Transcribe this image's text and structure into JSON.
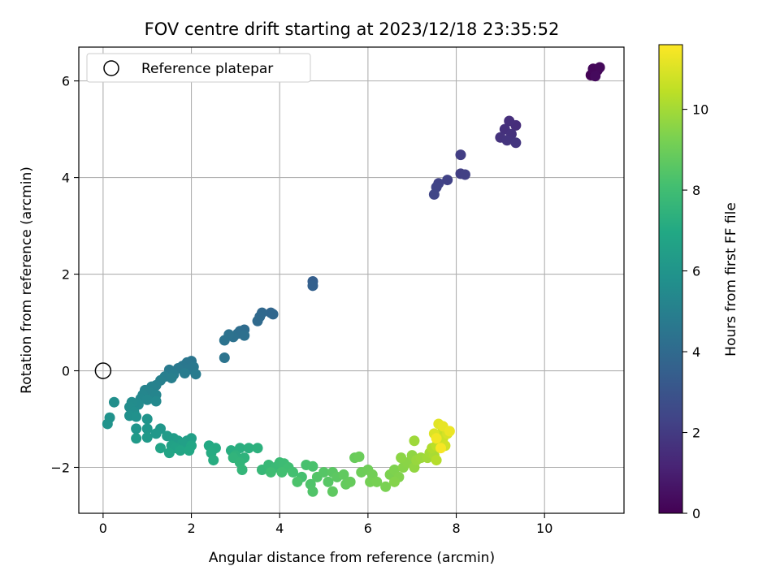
{
  "chart_data": {
    "type": "scatter",
    "title": "FOV centre drift starting at 2023/12/18 23:35:52",
    "xlabel": "Angular distance from reference (arcmin)",
    "ylabel": "Rotation from reference (arcmin)",
    "xlim": [
      -0.55,
      11.8
    ],
    "ylim": [
      -2.95,
      6.7
    ],
    "x_ticks": [
      0,
      2,
      4,
      6,
      8,
      10
    ],
    "y_ticks": [
      -2,
      0,
      2,
      4,
      6
    ],
    "x_tick_labels": [
      "0",
      "2",
      "4",
      "6",
      "8",
      "10"
    ],
    "y_tick_labels": [
      "−2",
      "0",
      "2",
      "4",
      "6"
    ],
    "grid": true,
    "legend": {
      "position": "top-left",
      "entries": [
        {
          "label": "Reference platepar",
          "marker": "open-circle"
        }
      ]
    },
    "reference_point": {
      "x": 0,
      "y": 0
    },
    "colorbar": {
      "label": "Hours from first FF file",
      "colormap": "viridis",
      "range": [
        0,
        11.6
      ],
      "ticks": [
        0,
        2,
        4,
        6,
        8,
        10
      ],
      "tick_labels": [
        "0",
        "2",
        "4",
        "6",
        "8",
        "10"
      ]
    },
    "points": [
      {
        "x": 11.05,
        "y": 6.12,
        "c": 0.05
      },
      {
        "x": 11.12,
        "y": 6.18,
        "c": 0.1
      },
      {
        "x": 11.2,
        "y": 6.22,
        "c": 0.15
      },
      {
        "x": 11.1,
        "y": 6.25,
        "c": 0.2
      },
      {
        "x": 11.25,
        "y": 6.28,
        "c": 0.25
      },
      {
        "x": 11.15,
        "y": 6.1,
        "c": 0.3
      },
      {
        "x": 9.35,
        "y": 5.08,
        "c": 1.5
      },
      {
        "x": 9.2,
        "y": 5.17,
        "c": 1.55
      },
      {
        "x": 9.1,
        "y": 5.0,
        "c": 1.6
      },
      {
        "x": 9.25,
        "y": 4.9,
        "c": 1.65
      },
      {
        "x": 9.0,
        "y": 4.83,
        "c": 1.7
      },
      {
        "x": 9.15,
        "y": 4.77,
        "c": 1.75
      },
      {
        "x": 9.35,
        "y": 4.72,
        "c": 1.8
      },
      {
        "x": 8.1,
        "y": 4.47,
        "c": 2.1
      },
      {
        "x": 8.1,
        "y": 4.08,
        "c": 2.15
      },
      {
        "x": 8.2,
        "y": 4.06,
        "c": 2.2
      },
      {
        "x": 7.8,
        "y": 3.95,
        "c": 2.25
      },
      {
        "x": 7.6,
        "y": 3.88,
        "c": 2.3
      },
      {
        "x": 7.55,
        "y": 3.8,
        "c": 2.35
      },
      {
        "x": 7.5,
        "y": 3.65,
        "c": 2.4
      },
      {
        "x": 4.75,
        "y": 1.85,
        "c": 3.5
      },
      {
        "x": 4.75,
        "y": 1.76,
        "c": 3.55
      },
      {
        "x": 3.8,
        "y": 1.2,
        "c": 3.8
      },
      {
        "x": 3.85,
        "y": 1.17,
        "c": 3.85
      },
      {
        "x": 3.6,
        "y": 1.2,
        "c": 3.9
      },
      {
        "x": 3.55,
        "y": 1.12,
        "c": 3.95
      },
      {
        "x": 3.5,
        "y": 1.03,
        "c": 4.0
      },
      {
        "x": 3.2,
        "y": 0.85,
        "c": 4.1
      },
      {
        "x": 3.1,
        "y": 0.82,
        "c": 4.15
      },
      {
        "x": 3.05,
        "y": 0.77,
        "c": 4.2
      },
      {
        "x": 3.2,
        "y": 0.73,
        "c": 4.25
      },
      {
        "x": 2.95,
        "y": 0.7,
        "c": 4.3
      },
      {
        "x": 2.85,
        "y": 0.75,
        "c": 4.35
      },
      {
        "x": 2.75,
        "y": 0.63,
        "c": 4.4
      },
      {
        "x": 2.75,
        "y": 0.27,
        "c": 4.45
      },
      {
        "x": 2.0,
        "y": 0.2,
        "c": 4.5
      },
      {
        "x": 1.9,
        "y": 0.17,
        "c": 4.55
      },
      {
        "x": 1.8,
        "y": 0.1,
        "c": 4.6
      },
      {
        "x": 2.05,
        "y": 0.08,
        "c": 4.62
      },
      {
        "x": 1.95,
        "y": 0.03,
        "c": 4.65
      },
      {
        "x": 1.7,
        "y": 0.05,
        "c": 4.7
      },
      {
        "x": 1.5,
        "y": 0.02,
        "c": 4.75
      },
      {
        "x": 2.1,
        "y": -0.07,
        "c": 4.8
      },
      {
        "x": 1.85,
        "y": -0.05,
        "c": 4.82
      },
      {
        "x": 1.6,
        "y": -0.08,
        "c": 4.85
      },
      {
        "x": 1.4,
        "y": -0.12,
        "c": 4.9
      },
      {
        "x": 1.55,
        "y": -0.15,
        "c": 4.95
      },
      {
        "x": 1.3,
        "y": -0.2,
        "c": 5.0
      },
      {
        "x": 1.2,
        "y": -0.3,
        "c": 5.05
      },
      {
        "x": 1.1,
        "y": -0.33,
        "c": 5.1
      },
      {
        "x": 0.95,
        "y": -0.4,
        "c": 5.15
      },
      {
        "x": 1.05,
        "y": -0.45,
        "c": 5.2
      },
      {
        "x": 1.2,
        "y": -0.5,
        "c": 5.25
      },
      {
        "x": 0.9,
        "y": -0.5,
        "c": 5.3
      },
      {
        "x": 0.85,
        "y": -0.58,
        "c": 5.35
      },
      {
        "x": 1.0,
        "y": -0.6,
        "c": 5.4
      },
      {
        "x": 1.2,
        "y": -0.63,
        "c": 5.45
      },
      {
        "x": 0.8,
        "y": -0.7,
        "c": 5.5
      },
      {
        "x": 0.65,
        "y": -0.65,
        "c": 5.55
      },
      {
        "x": 0.6,
        "y": -0.75,
        "c": 5.6
      },
      {
        "x": 0.7,
        "y": -0.85,
        "c": 5.65
      },
      {
        "x": 0.25,
        "y": -0.65,
        "c": 5.7
      },
      {
        "x": 0.6,
        "y": -0.93,
        "c": 5.75
      },
      {
        "x": 0.75,
        "y": -0.95,
        "c": 5.8
      },
      {
        "x": 0.15,
        "y": -0.97,
        "c": 5.85
      },
      {
        "x": 0.1,
        "y": -1.1,
        "c": 5.9
      },
      {
        "x": 1.0,
        "y": -1.0,
        "c": 5.95
      },
      {
        "x": 0.75,
        "y": -1.2,
        "c": 6.0
      },
      {
        "x": 1.0,
        "y": -1.2,
        "c": 6.05
      },
      {
        "x": 1.3,
        "y": -1.2,
        "c": 6.1
      },
      {
        "x": 1.2,
        "y": -1.3,
        "c": 6.15
      },
      {
        "x": 1.0,
        "y": -1.38,
        "c": 6.2
      },
      {
        "x": 0.75,
        "y": -1.4,
        "c": 6.25
      },
      {
        "x": 1.45,
        "y": -1.35,
        "c": 6.3
      },
      {
        "x": 1.6,
        "y": -1.4,
        "c": 6.35
      },
      {
        "x": 1.7,
        "y": -1.45,
        "c": 6.4
      },
      {
        "x": 1.9,
        "y": -1.45,
        "c": 6.45
      },
      {
        "x": 2.0,
        "y": -1.4,
        "c": 6.5
      },
      {
        "x": 1.8,
        "y": -1.5,
        "c": 6.55
      },
      {
        "x": 1.55,
        "y": -1.55,
        "c": 6.6
      },
      {
        "x": 1.65,
        "y": -1.6,
        "c": 6.65
      },
      {
        "x": 1.3,
        "y": -1.6,
        "c": 6.7
      },
      {
        "x": 1.5,
        "y": -1.7,
        "c": 6.75
      },
      {
        "x": 1.75,
        "y": -1.65,
        "c": 6.8
      },
      {
        "x": 2.0,
        "y": -1.55,
        "c": 6.85
      },
      {
        "x": 1.95,
        "y": -1.65,
        "c": 6.9
      },
      {
        "x": 2.4,
        "y": -1.55,
        "c": 7.0
      },
      {
        "x": 2.55,
        "y": -1.6,
        "c": 7.05
      },
      {
        "x": 2.45,
        "y": -1.7,
        "c": 7.1
      },
      {
        "x": 2.5,
        "y": -1.85,
        "c": 7.15
      },
      {
        "x": 2.9,
        "y": -1.65,
        "c": 7.2
      },
      {
        "x": 3.1,
        "y": -1.6,
        "c": 7.25
      },
      {
        "x": 3.3,
        "y": -1.6,
        "c": 7.3
      },
      {
        "x": 3.5,
        "y": -1.6,
        "c": 7.35
      },
      {
        "x": 3.0,
        "y": -1.75,
        "c": 7.4
      },
      {
        "x": 3.2,
        "y": -1.8,
        "c": 7.45
      },
      {
        "x": 2.95,
        "y": -1.8,
        "c": 7.5
      },
      {
        "x": 3.1,
        "y": -1.9,
        "c": 7.55
      },
      {
        "x": 3.15,
        "y": -2.05,
        "c": 7.6
      },
      {
        "x": 3.6,
        "y": -2.05,
        "c": 7.7
      },
      {
        "x": 3.75,
        "y": -1.95,
        "c": 7.75
      },
      {
        "x": 3.9,
        "y": -2.0,
        "c": 7.8
      },
      {
        "x": 4.0,
        "y": -1.9,
        "c": 7.85
      },
      {
        "x": 4.1,
        "y": -1.92,
        "c": 7.9
      },
      {
        "x": 3.8,
        "y": -2.1,
        "c": 7.95
      },
      {
        "x": 4.2,
        "y": -2.0,
        "c": 8.0
      },
      {
        "x": 4.05,
        "y": -2.1,
        "c": 8.05
      },
      {
        "x": 4.3,
        "y": -2.1,
        "c": 8.1
      },
      {
        "x": 4.5,
        "y": -2.2,
        "c": 8.15
      },
      {
        "x": 4.6,
        "y": -1.95,
        "c": 8.2
      },
      {
        "x": 4.75,
        "y": -1.98,
        "c": 8.25
      },
      {
        "x": 4.4,
        "y": -2.3,
        "c": 8.3
      },
      {
        "x": 4.7,
        "y": -2.35,
        "c": 8.35
      },
      {
        "x": 4.75,
        "y": -2.5,
        "c": 8.4
      },
      {
        "x": 4.85,
        "y": -2.2,
        "c": 8.45
      },
      {
        "x": 5.0,
        "y": -2.1,
        "c": 8.5
      },
      {
        "x": 5.1,
        "y": -2.3,
        "c": 8.55
      },
      {
        "x": 5.2,
        "y": -2.1,
        "c": 8.6
      },
      {
        "x": 5.3,
        "y": -2.2,
        "c": 8.65
      },
      {
        "x": 5.2,
        "y": -2.5,
        "c": 8.7
      },
      {
        "x": 5.45,
        "y": -2.15,
        "c": 8.75
      },
      {
        "x": 5.5,
        "y": -2.35,
        "c": 8.8
      },
      {
        "x": 5.6,
        "y": -2.3,
        "c": 8.85
      },
      {
        "x": 5.7,
        "y": -1.8,
        "c": 8.9
      },
      {
        "x": 5.8,
        "y": -1.78,
        "c": 8.95
      },
      {
        "x": 5.85,
        "y": -2.1,
        "c": 9.0
      },
      {
        "x": 6.0,
        "y": -2.05,
        "c": 9.05
      },
      {
        "x": 6.1,
        "y": -2.15,
        "c": 9.1
      },
      {
        "x": 6.05,
        "y": -2.3,
        "c": 9.15
      },
      {
        "x": 6.2,
        "y": -2.3,
        "c": 9.2
      },
      {
        "x": 6.4,
        "y": -2.4,
        "c": 9.25
      },
      {
        "x": 6.5,
        "y": -2.15,
        "c": 9.3
      },
      {
        "x": 6.6,
        "y": -2.05,
        "c": 9.35
      },
      {
        "x": 6.7,
        "y": -2.2,
        "c": 9.4
      },
      {
        "x": 6.6,
        "y": -2.3,
        "c": 9.45
      },
      {
        "x": 6.8,
        "y": -2.0,
        "c": 9.5
      },
      {
        "x": 6.9,
        "y": -1.9,
        "c": 9.55
      },
      {
        "x": 6.75,
        "y": -1.8,
        "c": 9.6
      },
      {
        "x": 7.0,
        "y": -1.75,
        "c": 9.65
      },
      {
        "x": 7.05,
        "y": -2.0,
        "c": 9.7
      },
      {
        "x": 7.1,
        "y": -1.85,
        "c": 9.8
      },
      {
        "x": 7.2,
        "y": -1.8,
        "c": 9.85
      },
      {
        "x": 7.05,
        "y": -1.45,
        "c": 9.9
      },
      {
        "x": 7.35,
        "y": -1.8,
        "c": 9.95
      },
      {
        "x": 7.4,
        "y": -1.7,
        "c": 10.0
      },
      {
        "x": 7.5,
        "y": -1.75,
        "c": 10.1
      },
      {
        "x": 7.45,
        "y": -1.6,
        "c": 10.2
      },
      {
        "x": 7.55,
        "y": -1.85,
        "c": 10.3
      },
      {
        "x": 7.55,
        "y": -1.55,
        "c": 10.4
      },
      {
        "x": 7.6,
        "y": -1.45,
        "c": 10.5
      },
      {
        "x": 7.65,
        "y": -1.3,
        "c": 10.6
      },
      {
        "x": 7.7,
        "y": -1.4,
        "c": 10.7
      },
      {
        "x": 7.75,
        "y": -1.55,
        "c": 10.8
      },
      {
        "x": 7.8,
        "y": -1.3,
        "c": 10.9
      },
      {
        "x": 7.5,
        "y": -1.3,
        "c": 11.0
      },
      {
        "x": 7.6,
        "y": -1.1,
        "c": 11.1
      },
      {
        "x": 7.7,
        "y": -1.15,
        "c": 11.2
      },
      {
        "x": 7.85,
        "y": -1.25,
        "c": 11.3
      },
      {
        "x": 7.55,
        "y": -1.4,
        "c": 11.4
      },
      {
        "x": 7.65,
        "y": -1.6,
        "c": 11.5
      }
    ]
  }
}
